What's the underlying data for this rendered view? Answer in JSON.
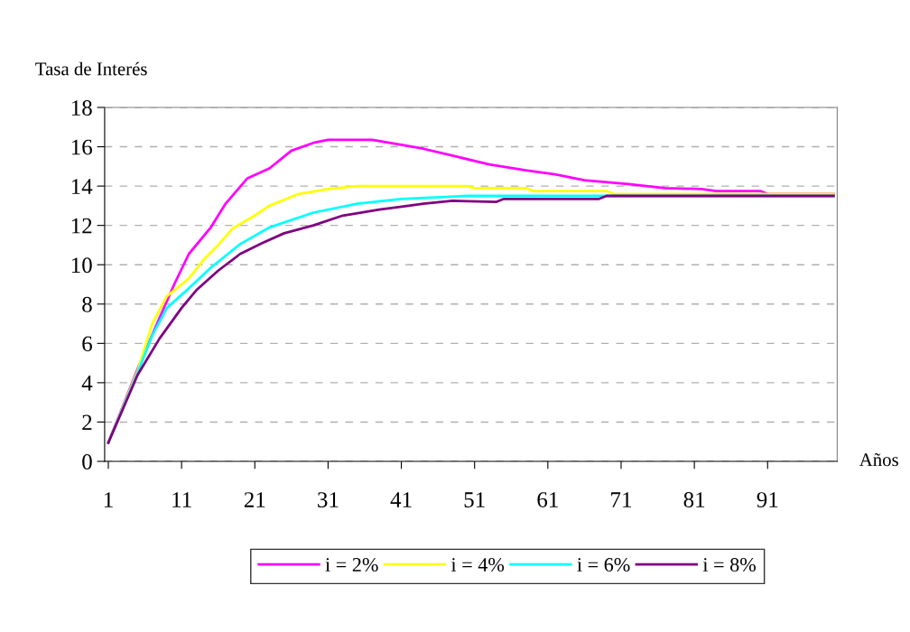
{
  "chart_data": {
    "type": "line",
    "ylabel": "Tasa de Interés",
    "xlabel": "Años",
    "xlim": [
      0.5,
      100.5
    ],
    "xticks": [
      1,
      11,
      21,
      31,
      41,
      51,
      61,
      71,
      81,
      91
    ],
    "ylim": [
      0,
      18
    ],
    "yticks": [
      0,
      2,
      4,
      6,
      8,
      10,
      12,
      14,
      16,
      18
    ],
    "grid": "y",
    "legend": "bottom",
    "marker": "none",
    "line_style": "solid",
    "series": [
      {
        "name": "i = 2%",
        "color": "#ff00ff",
        "x": [
          1,
          5,
          8,
          10,
          12,
          15,
          17,
          20,
          23,
          26,
          29,
          31,
          37,
          41,
          44,
          48,
          53,
          58,
          62,
          66,
          72,
          77,
          82,
          84,
          90,
          91,
          100
        ],
        "values": [
          0.95,
          4.7,
          7.3,
          9.0,
          10.55,
          11.9,
          13.1,
          14.4,
          14.9,
          15.8,
          16.2,
          16.35,
          16.35,
          16.1,
          15.9,
          15.55,
          15.1,
          14.8,
          14.6,
          14.3,
          14.1,
          13.9,
          13.85,
          13.75,
          13.75,
          13.6,
          13.6
        ]
      },
      {
        "name": "i = 4%",
        "color": "#ffff00",
        "x": [
          1,
          5,
          7,
          9,
          12,
          14,
          16,
          18,
          21,
          23,
          27,
          31,
          35,
          50,
          51,
          58,
          59,
          69,
          70,
          100
        ],
        "values": [
          0.95,
          4.6,
          7.0,
          8.4,
          9.3,
          10.25,
          11.0,
          11.85,
          12.5,
          13.0,
          13.6,
          13.85,
          14.0,
          14.0,
          13.9,
          13.9,
          13.75,
          13.75,
          13.6,
          13.6
        ]
      },
      {
        "name": "i = 6%",
        "color": "#00ffff",
        "x": [
          1,
          5,
          7,
          9,
          12,
          15,
          19,
          23,
          29,
          35,
          41,
          47,
          50,
          100
        ],
        "values": [
          0.95,
          4.5,
          6.4,
          7.8,
          8.8,
          9.85,
          11.05,
          11.9,
          12.65,
          13.1,
          13.35,
          13.45,
          13.5,
          13.5
        ]
      },
      {
        "name": "i = 8%",
        "color": "#800080",
        "x": [
          1,
          5,
          8,
          11,
          13,
          16,
          19,
          22,
          25,
          29,
          33,
          38,
          42,
          44,
          48,
          54,
          55,
          68,
          69,
          100
        ],
        "values": [
          0.95,
          4.4,
          6.25,
          7.8,
          8.7,
          9.7,
          10.55,
          11.1,
          11.6,
          12.0,
          12.5,
          12.8,
          13.0,
          13.1,
          13.25,
          13.2,
          13.35,
          13.35,
          13.5,
          13.5
        ]
      }
    ]
  }
}
